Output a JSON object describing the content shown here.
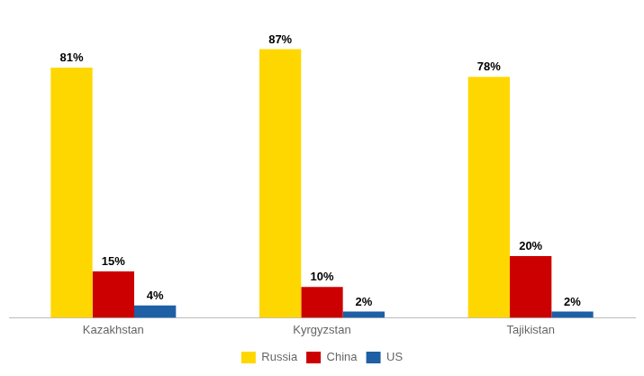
{
  "chart_data": {
    "type": "bar",
    "categories": [
      "Kazakhstan",
      "Kyrgyzstan",
      "Tajikistan"
    ],
    "series": [
      {
        "name": "Russia",
        "color": "#FFD700",
        "values": [
          81,
          87,
          78
        ],
        "value_labels": [
          "81%",
          "87%",
          "78%"
        ]
      },
      {
        "name": "China",
        "color": "#CC0000",
        "values": [
          15,
          10,
          20
        ],
        "value_labels": [
          "15%",
          "10%",
          "20%"
        ]
      },
      {
        "name": "US",
        "color": "#1F5FA6",
        "values": [
          4,
          2,
          2
        ],
        "value_labels": [
          "4%",
          "2%",
          "2%"
        ]
      }
    ],
    "ylim": [
      0,
      100
    ],
    "grid": false,
    "legend": "bottom",
    "data_labels": true,
    "tick_labels": "x"
  }
}
